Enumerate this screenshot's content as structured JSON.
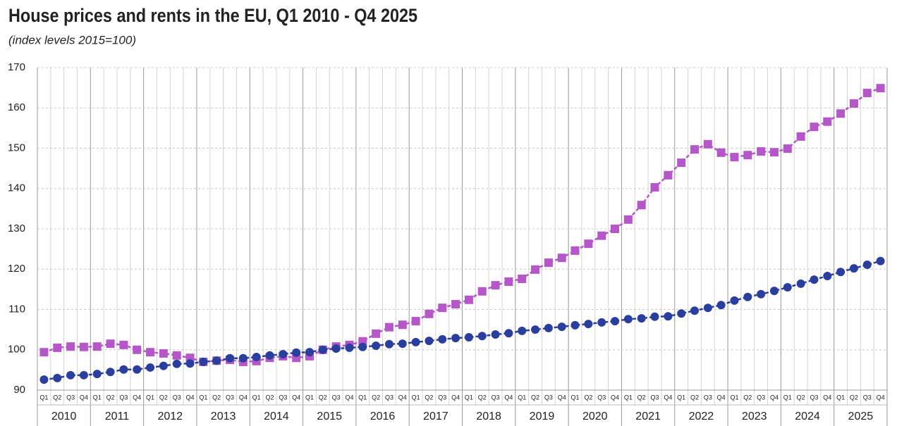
{
  "chart_data": {
    "type": "line",
    "title": "House prices and rents in the EU, Q1 2010 - Q4 2025",
    "subtitle": "(index levels 2015=100)",
    "categories": [
      "Q1",
      "Q2",
      "Q3",
      "Q4",
      "Q1",
      "Q2",
      "Q3",
      "Q4",
      "Q1",
      "Q2",
      "Q3",
      "Q4",
      "Q1",
      "Q2",
      "Q3",
      "Q4",
      "Q1",
      "Q2",
      "Q3",
      "Q4",
      "Q1",
      "Q2",
      "Q3",
      "Q4",
      "Q1",
      "Q2",
      "Q3",
      "Q4",
      "Q1",
      "Q2",
      "Q3",
      "Q4",
      "Q1",
      "Q2",
      "Q3",
      "Q4",
      "Q1",
      "Q2",
      "Q3",
      "Q4",
      "Q1",
      "Q2",
      "Q3",
      "Q4",
      "Q1",
      "Q2",
      "Q3",
      "Q4",
      "Q1",
      "Q2",
      "Q3",
      "Q4",
      "Q1",
      "Q2",
      "Q3",
      "Q4",
      "Q1",
      "Q2",
      "Q3",
      "Q4",
      "Q1",
      "Q2",
      "Q3",
      "Q4"
    ],
    "years": [
      "2010",
      "2011",
      "2012",
      "2013",
      "2014",
      "2015",
      "2016",
      "2017",
      "2018",
      "2019",
      "2020",
      "2021",
      "2022",
      "2023",
      "2024",
      "2025"
    ],
    "series": [
      {
        "color": "#b557c9",
        "marker": "square",
        "values": [
          99.4,
          100.5,
          100.8,
          100.7,
          100.8,
          101.5,
          101.2,
          100.0,
          99.4,
          99.1,
          98.6,
          98.0,
          97.0,
          97.3,
          97.5,
          97.0,
          97.2,
          98.0,
          98.4,
          98.0,
          98.4,
          100.0,
          100.8,
          101.2,
          102.1,
          104.0,
          105.6,
          106.2,
          107.1,
          108.9,
          110.4,
          111.3,
          112.4,
          114.5,
          116.0,
          116.9,
          117.6,
          119.9,
          121.6,
          122.8,
          124.6,
          126.3,
          128.3,
          130.0,
          132.3,
          135.9,
          140.3,
          143.3,
          146.4,
          149.7,
          151.0,
          148.9,
          147.8,
          148.3,
          149.2,
          149.0,
          149.9,
          152.9,
          155.3,
          156.6,
          158.6,
          161.1,
          163.7,
          164.9
        ]
      },
      {
        "color": "#2a3f9d",
        "marker": "circle",
        "values": [
          92.6,
          93.0,
          93.7,
          93.7,
          94.0,
          94.5,
          95.1,
          95.1,
          95.6,
          96.0,
          96.5,
          96.6,
          97.0,
          97.3,
          97.9,
          97.9,
          98.2,
          98.6,
          98.9,
          99.3,
          99.4,
          100.0,
          100.3,
          100.5,
          100.7,
          101.0,
          101.4,
          101.5,
          101.9,
          102.2,
          102.6,
          102.9,
          103.1,
          103.4,
          103.8,
          104.1,
          104.7,
          105.0,
          105.4,
          105.7,
          106.1,
          106.4,
          106.8,
          107.1,
          107.6,
          107.8,
          108.2,
          108.3,
          109.0,
          109.7,
          110.4,
          111.1,
          112.2,
          113.1,
          113.8,
          114.6,
          115.5,
          116.4,
          117.4,
          118.3,
          119.3,
          120.2,
          121.1,
          122.0
        ]
      }
    ],
    "ylim": [
      90,
      170
    ],
    "yticks": [
      90,
      100,
      110,
      120,
      130,
      140,
      150,
      160,
      170
    ],
    "grid": true
  }
}
